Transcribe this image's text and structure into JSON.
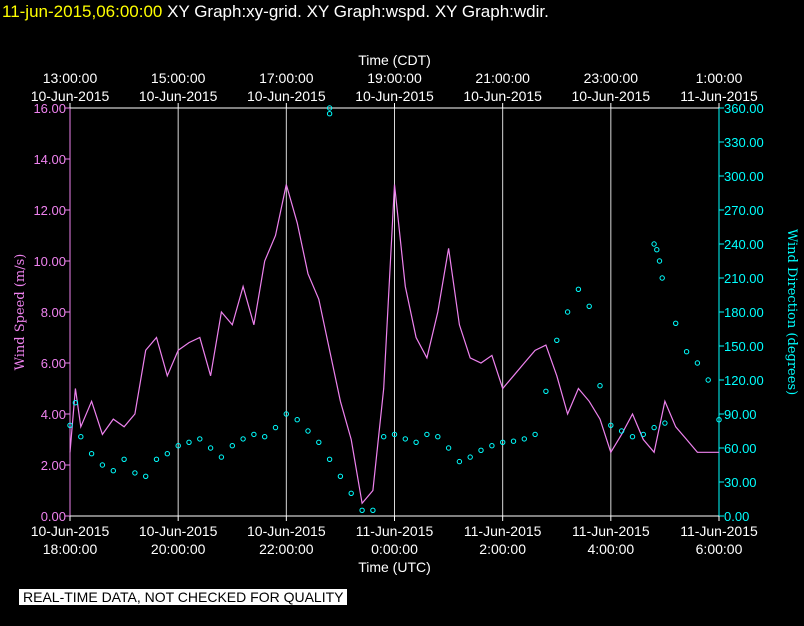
{
  "header": {
    "timestamp": "11-jun-2015,06:00:00",
    "graph_titles": "XY Graph:xy-grid.  XY Graph:wspd.  XY Graph:wdir."
  },
  "footer": {
    "quality_note": "REAL-TIME DATA, NOT CHECKED FOR QUALITY"
  },
  "chart_data": {
    "type": "line",
    "colors": {
      "wind_speed": "#ee82ee",
      "wind_direction": "#00ffff",
      "axes": "#ffffff",
      "grid": "#ffffff"
    },
    "top_axis": {
      "label": "Time (CDT)",
      "ticks": [
        {
          "h": 0,
          "t": "13:00:00",
          "d": "10-Jun-2015"
        },
        {
          "h": 2,
          "t": "15:00:00",
          "d": "10-Jun-2015"
        },
        {
          "h": 4,
          "t": "17:00:00",
          "d": "10-Jun-2015"
        },
        {
          "h": 6,
          "t": "19:00:00",
          "d": "10-Jun-2015"
        },
        {
          "h": 8,
          "t": "21:00:00",
          "d": "10-Jun-2015"
        },
        {
          "h": 10,
          "t": "23:00:00",
          "d": "10-Jun-2015"
        },
        {
          "h": 12,
          "t": "1:00:00",
          "d": "11-Jun-2015"
        }
      ]
    },
    "bottom_axis": {
      "label": "Time (UTC)",
      "ticks": [
        {
          "h": 0,
          "d": "10-Jun-2015",
          "t": "18:00:00"
        },
        {
          "h": 2,
          "d": "10-Jun-2015",
          "t": "20:00:00"
        },
        {
          "h": 4,
          "d": "10-Jun-2015",
          "t": "22:00:00"
        },
        {
          "h": 6,
          "d": "11-Jun-2015",
          "t": "0:00:00"
        },
        {
          "h": 8,
          "d": "11-Jun-2015",
          "t": "2:00:00"
        },
        {
          "h": 10,
          "d": "11-Jun-2015",
          "t": "4:00:00"
        },
        {
          "h": 12,
          "d": "11-Jun-2015",
          "t": "6:00:00"
        }
      ]
    },
    "left_axis": {
      "label": "Wind Speed (m/s)",
      "range": [
        0,
        16
      ],
      "ticks": [
        "0.00",
        "2.00",
        "4.00",
        "6.00",
        "8.00",
        "10.00",
        "12.00",
        "14.00",
        "16.00"
      ]
    },
    "right_axis": {
      "label": "Wind Direction (degrees)",
      "range": [
        0,
        360
      ],
      "ticks": [
        "0.00",
        "30.00",
        "60.00",
        "90.00",
        "120.00",
        "150.00",
        "180.00",
        "210.00",
        "240.00",
        "270.00",
        "300.00",
        "330.00",
        "360.00"
      ]
    },
    "grid": "vertical",
    "series": [
      {
        "key": "wind_speed",
        "style": "line",
        "x": [
          0,
          0.1,
          0.2,
          0.4,
          0.6,
          0.8,
          1.0,
          1.2,
          1.4,
          1.6,
          1.8,
          2.0,
          2.2,
          2.4,
          2.6,
          2.8,
          3.0,
          3.2,
          3.4,
          3.6,
          3.8,
          4.0,
          4.2,
          4.4,
          4.6,
          4.8,
          5.0,
          5.2,
          5.4,
          5.6,
          5.8,
          6.0,
          6.2,
          6.4,
          6.6,
          6.8,
          7.0,
          7.2,
          7.4,
          7.6,
          7.8,
          8.0,
          8.2,
          8.4,
          8.6,
          8.8,
          9.0,
          9.2,
          9.4,
          9.6,
          9.8,
          10.0,
          10.2,
          10.4,
          10.6,
          10.8,
          11.0,
          11.2,
          11.4,
          11.6,
          11.8,
          12.0
        ],
        "y": [
          2.5,
          5.0,
          3.5,
          4.5,
          3.2,
          3.8,
          3.5,
          4.0,
          6.5,
          7.0,
          5.5,
          6.5,
          6.8,
          7.0,
          5.5,
          8.0,
          7.5,
          9.0,
          7.5,
          10.0,
          11.0,
          13.0,
          11.5,
          9.5,
          8.5,
          6.5,
          4.5,
          3.0,
          0.5,
          1.0,
          5.0,
          13.0,
          9.0,
          7.0,
          6.2,
          8.0,
          10.5,
          7.5,
          6.2,
          6.0,
          6.3,
          5.0,
          5.5,
          6.0,
          6.5,
          6.7,
          5.5,
          4.0,
          5.0,
          4.5,
          3.8,
          2.5,
          3.2,
          4.0,
          3.0,
          2.5,
          4.5,
          3.5,
          3.0,
          2.5,
          2.5,
          2.5
        ]
      },
      {
        "key": "wind_direction",
        "style": "markers",
        "x": [
          0,
          0.1,
          0.2,
          0.4,
          0.6,
          0.8,
          1.0,
          1.2,
          1.4,
          1.6,
          1.8,
          2.0,
          2.2,
          2.4,
          2.6,
          2.8,
          3.0,
          3.2,
          3.4,
          3.6,
          3.8,
          4.0,
          4.2,
          4.4,
          4.6,
          4.8,
          5.0,
          5.2,
          5.4,
          5.6,
          5.8,
          6.0,
          6.2,
          6.4,
          6.6,
          6.8,
          7.0,
          7.2,
          7.4,
          7.6,
          7.8,
          8.0,
          8.2,
          8.4,
          8.6,
          8.8,
          9.0,
          9.2,
          9.4,
          9.6,
          9.8,
          10.0,
          10.2,
          10.4,
          10.6,
          10.8,
          11.0,
          11.2,
          11.4,
          11.6,
          11.8,
          12.0
        ],
        "y": [
          80,
          100,
          70,
          55,
          45,
          40,
          50,
          38,
          35,
          50,
          55,
          62,
          65,
          68,
          60,
          52,
          62,
          68,
          72,
          70,
          78,
          90,
          85,
          75,
          65,
          50,
          35,
          20,
          5,
          5,
          70,
          72,
          68,
          65,
          72,
          70,
          60,
          48,
          52,
          58,
          62,
          65,
          66,
          68,
          72,
          110,
          155,
          180,
          200,
          185,
          115,
          80,
          75,
          70,
          72,
          78,
          82,
          170,
          145,
          135,
          120,
          85
        ]
      },
      {
        "key": "wind_direction_outliers",
        "style": "markers",
        "x": [
          4.8,
          4.8,
          10.8,
          10.85,
          10.9,
          10.95
        ],
        "y": [
          355,
          360,
          240,
          235,
          225,
          210
        ]
      }
    ]
  }
}
